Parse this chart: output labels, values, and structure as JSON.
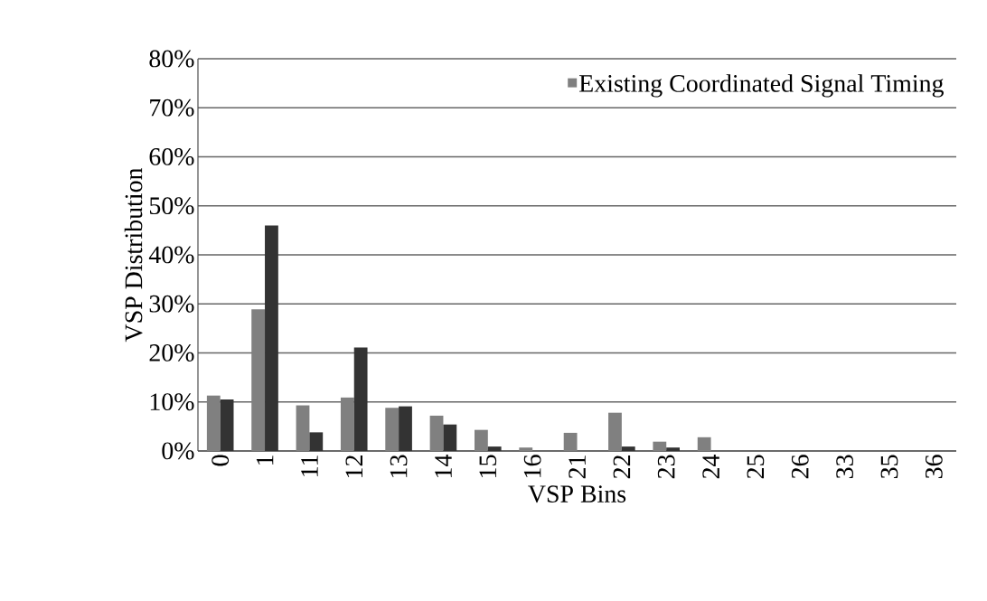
{
  "chart_data": {
    "type": "bar",
    "xlabel": "VSP Bins",
    "ylabel": "VSP Distribution",
    "categories": [
      "0",
      "1",
      "11",
      "12",
      "13",
      "14",
      "15",
      "16",
      "21",
      "22",
      "23",
      "24",
      "25",
      "26",
      "33",
      "35",
      "36"
    ],
    "series": [
      {
        "name": "Existing Coordinated Signal Timing",
        "color": "#808080",
        "values": [
          11.3,
          28.9,
          9.3,
          10.9,
          8.8,
          7.2,
          4.3,
          0.7,
          3.7,
          7.8,
          1.9,
          2.8,
          0,
          0,
          0,
          0,
          0
        ]
      },
      {
        "color": "#333333",
        "values": [
          10.5,
          46,
          3.8,
          21.1,
          9.1,
          5.4,
          0.9,
          0,
          0,
          0.9,
          0.7,
          0,
          0,
          0,
          0,
          0,
          0
        ]
      }
    ],
    "ylim": [
      0,
      80
    ],
    "yticks": [
      {
        "value": 0,
        "label": "0%"
      },
      {
        "value": 10,
        "label": "10%"
      },
      {
        "value": 20,
        "label": "20%"
      },
      {
        "value": 30,
        "label": "30%"
      },
      {
        "value": 40,
        "label": "40%"
      },
      {
        "value": 50,
        "label": "50%"
      },
      {
        "value": 60,
        "label": "60%"
      },
      {
        "value": 70,
        "label": "70%"
      },
      {
        "value": 80,
        "label": "80%"
      }
    ],
    "grid": "y",
    "legend": "top right"
  }
}
